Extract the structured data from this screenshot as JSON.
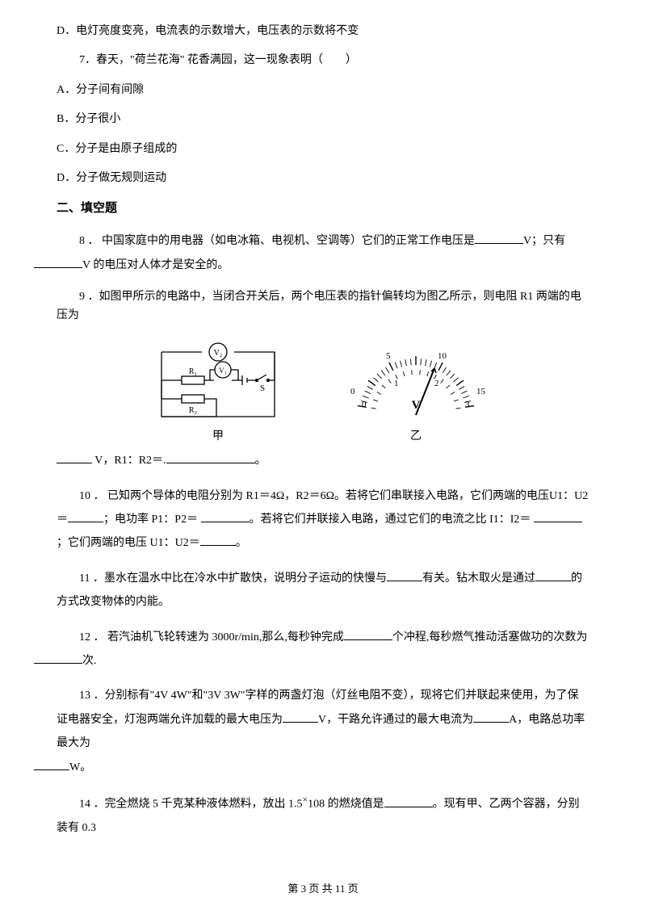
{
  "optD": "D．电灯亮度变亮，电流表的示数增大，电压表的示数将不变",
  "q7": {
    "stem": "7．春天，\"荷兰花海\" 花香满园，这一现象表明（　　）",
    "A": "A．分子间有间隙",
    "B": "B．分子很小",
    "C": "C．分子是由原子组成的",
    "D": "D．分子做无规则运动"
  },
  "sectionTitle": "二、填空题",
  "q8a": "8 ． 中国家庭中的用电器（如电冰箱、电视机、空调等）它们的正常工作电压是",
  "q8b": "V；只有",
  "q8c": "V 的电压对人体才是安全的。",
  "q9a": "9 ．如图甲所示的电路中，当闭合开关后，两个电压表的指针偏转均为图乙所示，则电阻 R1 两端的电压为",
  "q9b": "V，R1：R2＝",
  "q9c": "。",
  "figLabelA": "甲",
  "figLabelB": "乙",
  "circuit": {
    "v2": "V₂",
    "v1": "V₁",
    "r1": "R₁",
    "r2": "R₂",
    "s": "S"
  },
  "meter": {
    "top": [
      "0",
      "5",
      "10",
      "15"
    ],
    "bottom": [
      "0",
      "1",
      "2",
      "3"
    ],
    "unit": "V"
  },
  "q10a": "10 ． 已知两个导体的电阻分别为 R1＝4Ω，R2＝6Ω。若将它们串联接入电路，它们两端的电压U1：U2＝",
  "q10b": "；电功率 P1：P2＝ ",
  "q10c": "。若将它们并联接入电路，通过它们的电流之比 I1：I2＝ ",
  "q10d": "；它们两端的电压 U1：U2＝",
  "q10e": "。",
  "q11a": "11 ．墨水在温水中比在冷水中扩散快，说明分子运动的快慢与",
  "q11b": "有关。钻木取火是通过",
  "q11c": "的方式改变物体的内能。",
  "q12a": "12 ． 若汽油机飞轮转速为 3000r/min,那么,每秒钟完成",
  "q12b": "个冲程,每秒燃气推动活塞做功的次数为",
  "q12c": "次.",
  "q13a": "13 ．分别标有\"4V 4W\"和\"3V 3W\"字样的两盏灯泡（灯丝电阻不变），现将它们并联起来使用，为了保证电器安全，灯泡两端允许加载的最大电压为",
  "q13b": "V，干路允许通过的最大电流为",
  "q13c": "A，电路总功率最大为",
  "q13d": "W。",
  "q14a": "14 ．完全燃烧 5 千克某种液体燃料，放出 1.5",
  "q14sup": "×",
  "q14b": "108 的燃烧值是",
  "q14c": "。现有甲、乙两个容器，分别装有 0.3",
  "footer": "第 3 页 共 11 页"
}
